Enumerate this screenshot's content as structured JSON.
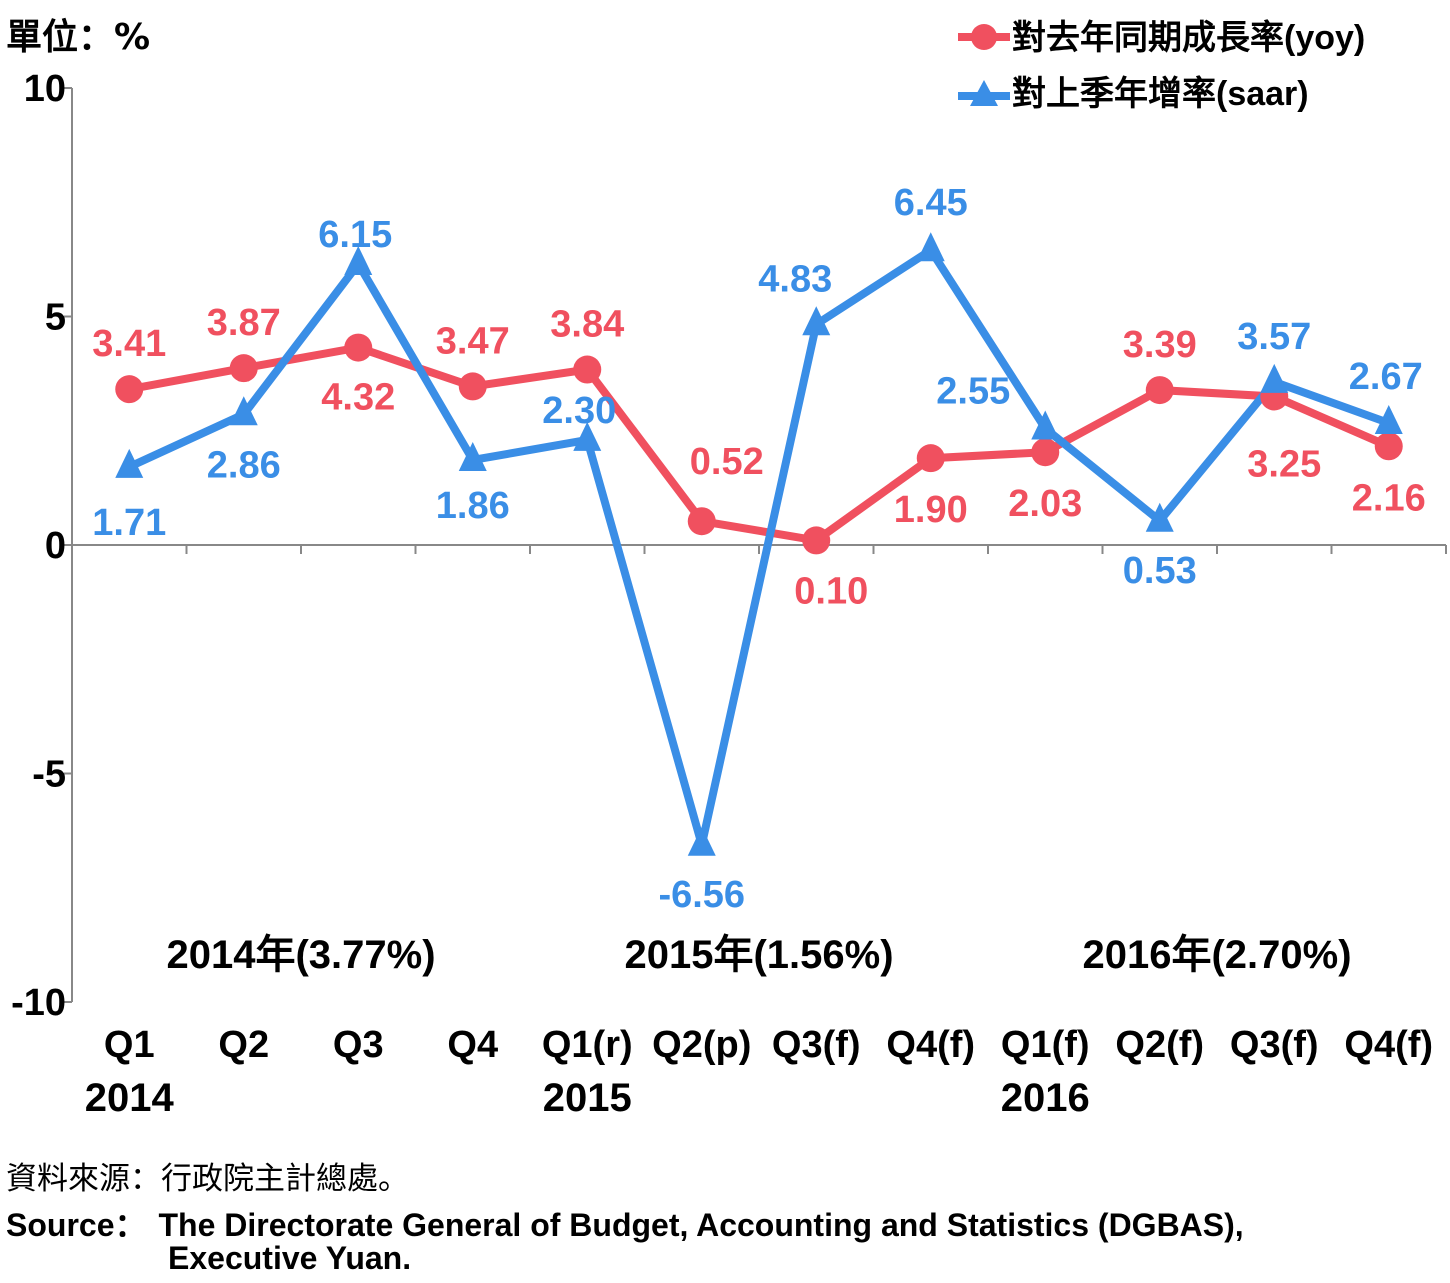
{
  "unit_label": "單位：%",
  "source_zh": "資料來源：行政院主計總處。",
  "source_en_prefix": "Source：",
  "source_en_line1": "The Directorate General of Budget, Accounting and Statistics (DGBAS),",
  "source_en_line2": "Executive Yuan.",
  "colors": {
    "yoy": "#f0505f",
    "saar": "#3a8ee6",
    "axis": "#888888"
  },
  "chart_data": {
    "type": "line",
    "categories": [
      "Q1",
      "Q2",
      "Q3",
      "Q4",
      "Q1(r)",
      "Q2(p)",
      "Q3(f)",
      "Q4(f)",
      "Q1(f)",
      "Q2(f)",
      "Q3(f)",
      "Q4(f)"
    ],
    "year_labels": [
      {
        "label": "2014",
        "category_index": 0
      },
      {
        "label": "2015",
        "category_index": 4
      },
      {
        "label": "2016",
        "category_index": 8
      }
    ],
    "period_annotations": [
      {
        "label": "2014年(3.77%)",
        "center_index": 1.5
      },
      {
        "label": "2015年(1.56%)",
        "center_index": 5.5
      },
      {
        "label": "2016年(2.70%)",
        "center_index": 9.5
      }
    ],
    "ylim": [
      -10,
      10
    ],
    "yticks": [
      "10",
      "5",
      "0",
      "-5",
      "-10"
    ],
    "ytick_values": [
      10,
      5,
      0,
      -5,
      -10
    ],
    "legend_position": "top-right",
    "series": [
      {
        "name": "對去年同期成長率(yoy)",
        "marker": "circle",
        "values": [
          3.41,
          3.87,
          4.32,
          3.47,
          3.84,
          0.52,
          0.1,
          1.9,
          2.03,
          3.39,
          3.25,
          2.16
        ],
        "labels": [
          "3.41",
          "3.87",
          "4.32",
          "3.47",
          "3.84",
          "0.52",
          "0.10",
          "1.90",
          "2.03",
          "3.39",
          "3.25",
          "2.16"
        ]
      },
      {
        "name": "對上季年增率(saar)",
        "marker": "triangle",
        "values": [
          1.71,
          2.86,
          6.15,
          1.86,
          2.3,
          -6.56,
          4.83,
          6.45,
          2.55,
          0.53,
          3.57,
          2.67
        ],
        "labels": [
          "1.71",
          "2.86",
          "6.15",
          "1.86",
          "2.30",
          "-6.56",
          "4.83",
          "6.45",
          "2.55",
          "0.53",
          "3.57",
          "2.67"
        ]
      }
    ]
  }
}
